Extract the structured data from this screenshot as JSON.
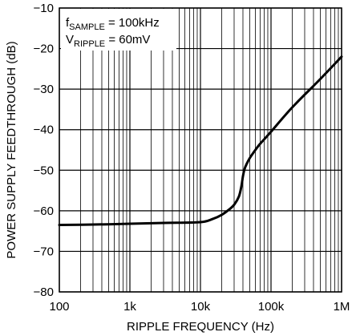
{
  "chart_data": {
    "type": "line",
    "xlabel": "RIPPLE FREQUENCY (Hz)",
    "ylabel": "POWER SUPPLY FEEDTHROUGH (dB)",
    "x_scale": "log",
    "xlim": [
      100,
      1000000
    ],
    "ylim": [
      -80,
      -10
    ],
    "grid": true,
    "x_ticks": [
      100,
      1000,
      10000,
      100000,
      1000000
    ],
    "x_tick_labels": [
      "100",
      "1k",
      "10k",
      "100k",
      "1M"
    ],
    "y_ticks": [
      -80,
      -70,
      -60,
      -50,
      -40,
      -30,
      -20,
      -10
    ],
    "y_tick_labels": [
      "−80",
      "−70",
      "−60",
      "−50",
      "−40",
      "−30",
      "−20",
      "−10"
    ],
    "annotations": [
      {
        "main": "f",
        "sub": "SAMPLE",
        "rest": " = 100kHz"
      },
      {
        "main": "V",
        "sub": "RIPPLE",
        "rest": " = 60mV"
      }
    ],
    "series": [
      {
        "x": [
          100,
          300,
          1000,
          3000,
          10000,
          15000,
          20000,
          25000,
          30000,
          35000,
          38000,
          40000,
          42000,
          45000,
          50000,
          60000,
          70000,
          100000,
          200000,
          500000,
          1000000
        ],
        "y": [
          -63.5,
          -63.4,
          -63.2,
          -63.0,
          -62.8,
          -62.0,
          -61.0,
          -59.8,
          -58.5,
          -56.5,
          -54.0,
          -51.5,
          -49.8,
          -48.5,
          -47.0,
          -45.0,
          -43.5,
          -40.5,
          -34.5,
          -27.5,
          -22.0
        ]
      }
    ]
  }
}
